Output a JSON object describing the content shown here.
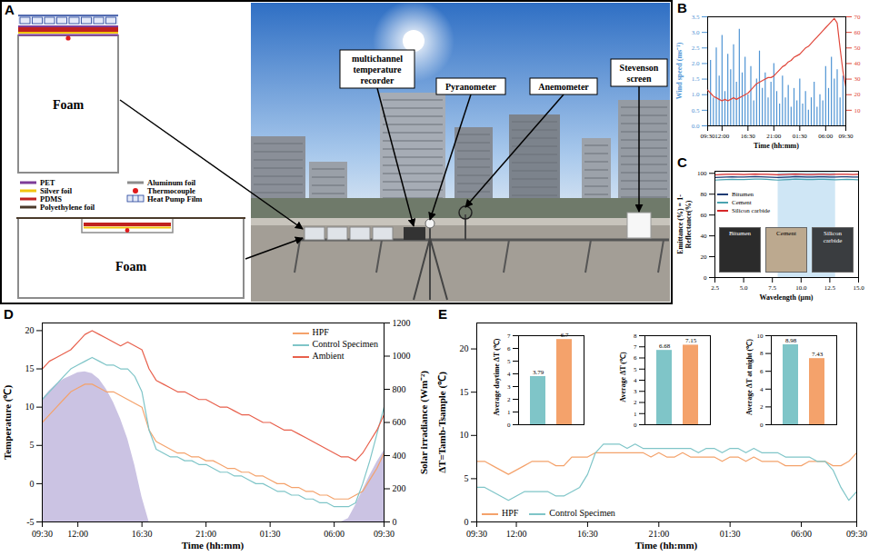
{
  "diagram": {
    "panel": "A",
    "schematic_labels": [
      "Foam",
      "Foam"
    ],
    "materials": [
      {
        "label": "PET",
        "color": "#7d3c98"
      },
      {
        "label": "Aluminum foil",
        "color": "#8c8c8c"
      },
      {
        "label": "Silver foil",
        "color": "#f1c40f"
      },
      {
        "label": "Thermocouple",
        "color": "#e0191c"
      },
      {
        "label": "PDMS",
        "color": "#c0211f"
      },
      {
        "label": "Heat Pump Film",
        "color": "#1f3f99"
      },
      {
        "label": "Polyethylene foil",
        "color": "#4a3a2a"
      }
    ],
    "photo_labels": [
      "multichannel temperature recorder",
      "Pyranometer",
      "Anemometer",
      "Stevenson screen"
    ]
  },
  "chart_data": [
    {
      "panel": "B",
      "type": "line",
      "xlabel": "Time (hh:mm)",
      "ylabel": "Wind speed (ms⁻¹)",
      "x": [
        0,
        0.5,
        1,
        1.5,
        2,
        2.5,
        3,
        3.5,
        4,
        4.5,
        5,
        5.5,
        6,
        6.5,
        7,
        7.5,
        8,
        8.5,
        9,
        9.5,
        10,
        10.5,
        11,
        11.5,
        12,
        12.5,
        13,
        13.5,
        14,
        14.5,
        15,
        15.5,
        16,
        16.5,
        17,
        17.5,
        18,
        18.5,
        19,
        19.5,
        20,
        20.5,
        21,
        21.5,
        22,
        22.5,
        23,
        23.5,
        24
      ],
      "xlim": [
        0,
        24
      ],
      "xticks": [
        {
          "value": 0,
          "label": "09:30"
        },
        {
          "value": 2.5,
          "label": "12:00"
        },
        {
          "value": 7,
          "label": "16:30"
        },
        {
          "value": 11.5,
          "label": "21:00"
        },
        {
          "value": 16,
          "label": "01:30"
        },
        {
          "value": 20.5,
          "label": "06:00"
        },
        {
          "value": 24,
          "label": "09:30"
        }
      ],
      "ylim": [
        0,
        3.5
      ],
      "yticks": [
        {
          "value": 0,
          "label": "0.0"
        },
        0.5,
        {
          "value": 1,
          "label": "1.0"
        },
        1.5,
        {
          "value": 2,
          "label": "2.0"
        },
        2.5,
        {
          "value": 3,
          "label": "3.0"
        },
        3.5
      ],
      "y2lim": [
        0,
        70
      ],
      "y2ticks": [
        10,
        20,
        30,
        40,
        50,
        60,
        70
      ],
      "series": [
        {
          "type": "bar",
          "color": "#4f94d4",
          "values": [
            1.2,
            2.1,
            0.9,
            2.5,
            1.6,
            2.9,
            1.1,
            2.3,
            1.8,
            2.6,
            1.4,
            3.1,
            1.7,
            2.2,
            1.0,
            1.9,
            0.8,
            1.5,
            2.4,
            1.2,
            1.7,
            0.9,
            1.4,
            2.0,
            1.1,
            0.7,
            1.6,
            0.9,
            1.3,
            0.6,
            1.2,
            0.8,
            1.5,
            0.7,
            1.1,
            0.5,
            0.9,
            1.4,
            0.6,
            1.0,
            0.8,
            1.9,
            1.2,
            2.2,
            1.5,
            1.8,
            0.9,
            1.6,
            1.3
          ]
        },
        {
          "type": "line",
          "axis": "y2",
          "color": "#e0463a",
          "values": [
            23,
            21,
            19,
            18,
            17,
            16,
            17,
            16,
            17,
            18,
            17,
            18,
            19,
            20,
            21,
            23,
            25,
            27,
            28,
            29,
            30,
            31,
            31,
            32,
            34,
            36,
            38,
            39,
            41,
            42,
            44,
            45,
            46,
            48,
            50,
            51,
            53,
            55,
            57,
            59,
            61,
            63,
            65,
            67,
            69,
            66,
            50,
            35,
            25
          ]
        }
      ]
    },
    {
      "panel": "C",
      "type": "line",
      "xlabel": "Wavelength (μm)",
      "ylabel": "Emittance (%) = 1-Reflectance(%)",
      "x": [
        2.5,
        3,
        3.5,
        4,
        4.5,
        5,
        5.5,
        6,
        6.5,
        7,
        7.5,
        8,
        8.5,
        9,
        9.5,
        10,
        10.5,
        11,
        11.5,
        12,
        12.5,
        13,
        13.5,
        14,
        14.5,
        15
      ],
      "xlim": [
        2.5,
        15
      ],
      "xticks": [
        2.5,
        {
          "value": 5,
          "label": "5.0"
        },
        7.5,
        {
          "value": 10,
          "label": "10.0"
        },
        12.5,
        {
          "value": 15,
          "label": "15.0"
        }
      ],
      "ylim": [
        0,
        102
      ],
      "yticks": [
        0,
        20,
        40,
        60,
        80,
        100
      ],
      "shaded_range": [
        8,
        13
      ],
      "legend": "center left",
      "photo_labels": [
        "Bitumen",
        "Cement",
        "Silicon carbide"
      ],
      "series": [
        {
          "name": "Bitumen",
          "color": "#1f3b73",
          "values": [
            96,
            96.3,
            96.5,
            96.6,
            96.4,
            96.5,
            96.7,
            96.8,
            96.6,
            96.5,
            96.2,
            96,
            96.3,
            96.5,
            96.8,
            96.6,
            96.4,
            96.5,
            96.7,
            96.6,
            96.5,
            96.4,
            96.6,
            96.7,
            96.5,
            96.4
          ]
        },
        {
          "name": "Cement",
          "color": "#4aa3b0",
          "values": [
            93.5,
            93.8,
            94,
            94.2,
            94.1,
            94,
            94.3,
            94.5,
            94.4,
            94.2,
            93.8,
            93.5,
            93.9,
            94.1,
            94.4,
            94.3,
            94,
            94.1,
            94.3,
            94.2,
            94,
            93.9,
            94.1,
            94.2,
            94,
            93.9
          ]
        },
        {
          "name": "Silicon carbide",
          "color": "#d62728",
          "values": [
            98.5,
            98.8,
            99,
            99.1,
            99,
            98.9,
            99,
            99.2,
            99.1,
            99,
            98.8,
            98.7,
            98.9,
            99,
            99.2,
            99,
            98.8,
            98.9,
            99.1,
            99,
            98.9,
            99,
            99.1,
            99,
            98.9,
            99
          ]
        }
      ]
    },
    {
      "panel": "D",
      "type": "line",
      "xlabel": "Time (hh:mm)",
      "ylabel": "Temperature (℃)",
      "y2label": "Solar irradiance (Wm⁻²)",
      "x": [
        0,
        0.5,
        1,
        1.5,
        2,
        2.5,
        3,
        3.5,
        4,
        4.5,
        5,
        5.5,
        6,
        6.5,
        7,
        7.5,
        8,
        8.5,
        9,
        9.5,
        10,
        10.5,
        11,
        11.5,
        12,
        12.5,
        13,
        13.5,
        14,
        14.5,
        15,
        15.5,
        16,
        16.5,
        17,
        17.5,
        18,
        18.5,
        19,
        19.5,
        20,
        20.5,
        21,
        21.5,
        22,
        22.5,
        23,
        23.5,
        24
      ],
      "xlim": [
        0,
        24
      ],
      "xticks": [
        {
          "value": 0,
          "label": "09:30"
        },
        {
          "value": 2.5,
          "label": "12:00"
        },
        {
          "value": 7,
          "label": "16:30"
        },
        {
          "value": 11.5,
          "label": "21:00"
        },
        {
          "value": 16,
          "label": "01:30"
        },
        {
          "value": 20.5,
          "label": "06:00"
        },
        {
          "value": 24,
          "label": "09:30"
        }
      ],
      "ylim": [
        -5,
        21
      ],
      "yticks": [
        -5,
        0,
        5,
        10,
        15,
        20
      ],
      "y2lim": [
        0,
        1200
      ],
      "y2ticks": [
        0,
        200,
        400,
        600,
        800,
        1000,
        1200
      ],
      "legend": "upper right",
      "series": [
        {
          "type": "area",
          "axis": "y2",
          "color": "#cbc3e3",
          "values": [
            740,
            790,
            830,
            860,
            880,
            900,
            905,
            895,
            860,
            800,
            720,
            620,
            500,
            340,
            150,
            0,
            0,
            0,
            0,
            0,
            0,
            0,
            0,
            0,
            0,
            0,
            0,
            0,
            0,
            0,
            0,
            0,
            0,
            0,
            0,
            0,
            0,
            0,
            0,
            0,
            0,
            0,
            0,
            20,
            100,
            190,
            280,
            360,
            430
          ]
        },
        {
          "name": "HPF",
          "color": "#f4a26b",
          "values": [
            8,
            9,
            10,
            11,
            12,
            12.5,
            13,
            13,
            12.5,
            12,
            12,
            11.5,
            11,
            10.5,
            10,
            7,
            5.5,
            5,
            4.5,
            4,
            4,
            3.5,
            3.5,
            3,
            3,
            2.5,
            2,
            2,
            1.5,
            1.5,
            1,
            1,
            0.5,
            0,
            0,
            -0.5,
            -0.5,
            -1,
            -1,
            -1.5,
            -1.5,
            -2,
            -2,
            -2,
            -1.5,
            -1,
            0.5,
            2,
            4
          ]
        },
        {
          "name": "Control Specimen",
          "color": "#7fc5c8",
          "values": [
            11,
            12,
            13,
            14,
            15,
            15.5,
            16,
            16.5,
            16,
            15.5,
            15.5,
            15,
            15,
            14,
            12,
            7,
            4.5,
            4,
            3.5,
            3.5,
            3,
            3,
            2.5,
            2.5,
            2,
            1.5,
            1.5,
            1,
            1,
            0.5,
            0,
            0,
            -0.5,
            -1,
            -1,
            -1.5,
            -1.5,
            -2,
            -2,
            -2.5,
            -2.5,
            -3,
            -3,
            -3,
            -2.5,
            0,
            3,
            6.5,
            10
          ]
        },
        {
          "name": "Ambient",
          "color": "#e8604c",
          "values": [
            15,
            16,
            16.5,
            17,
            17.5,
            18.5,
            19.5,
            20,
            19.5,
            19,
            18.5,
            18,
            18.5,
            18,
            17.5,
            15,
            13.5,
            13,
            12.5,
            12,
            12,
            11.5,
            11,
            11,
            10.5,
            10,
            10,
            9.5,
            9,
            9,
            8.5,
            8,
            8,
            7.5,
            7,
            7,
            6.5,
            6,
            5.5,
            5,
            4.5,
            4,
            3.5,
            3.5,
            3,
            4,
            5.5,
            7,
            9
          ]
        }
      ]
    },
    {
      "panel": "E",
      "type": "line",
      "xlabel": "Time (hh:mm)",
      "ylabel": "ΔT=Tamb-Tsample (℃)",
      "x": [
        0,
        0.5,
        1,
        1.5,
        2,
        2.5,
        3,
        3.5,
        4,
        4.5,
        5,
        5.5,
        6,
        6.5,
        7,
        7.5,
        8,
        8.5,
        9,
        9.5,
        10,
        10.5,
        11,
        11.5,
        12,
        12.5,
        13,
        13.5,
        14,
        14.5,
        15,
        15.5,
        16,
        16.5,
        17,
        17.5,
        18,
        18.5,
        19,
        19.5,
        20,
        20.5,
        21,
        21.5,
        22,
        22.5,
        23,
        23.5,
        24
      ],
      "xlim": [
        0,
        24
      ],
      "xticks": [
        {
          "value": 0,
          "label": "09:30"
        },
        {
          "value": 2.5,
          "label": "12:00"
        },
        {
          "value": 7,
          "label": "16:30"
        },
        {
          "value": 11.5,
          "label": "21:00"
        },
        {
          "value": 16,
          "label": "01:30"
        },
        {
          "value": 20.5,
          "label": "06:00"
        },
        {
          "value": 24,
          "label": "09:30"
        }
      ],
      "ylim": [
        0,
        23
      ],
      "yticks": [
        0,
        5,
        10,
        15,
        20
      ],
      "legend": "lower left",
      "series": [
        {
          "name": "HPF",
          "color": "#f4a26b",
          "values": [
            7,
            7,
            6.5,
            6,
            5.5,
            6,
            6.5,
            7,
            7,
            7,
            6.5,
            6.5,
            7.5,
            7.5,
            7.5,
            8,
            8,
            8,
            8,
            8,
            8,
            8,
            7.5,
            8,
            7.5,
            7.5,
            8,
            7.5,
            7.5,
            7.5,
            7.5,
            7,
            7.5,
            7.5,
            7,
            7.5,
            7,
            7,
            7,
            6.5,
            6.5,
            6.5,
            7,
            7,
            7,
            6.5,
            6.5,
            7,
            8
          ]
        },
        {
          "name": "Control Specimen",
          "color": "#7fc5c8",
          "values": [
            4,
            4,
            3.5,
            3,
            2.5,
            3,
            3.5,
            3.5,
            3.5,
            3.5,
            3,
            3,
            3.5,
            4,
            5.5,
            8,
            9,
            9,
            9,
            8.5,
            9,
            8.5,
            8.5,
            8.5,
            8.5,
            8.5,
            8.5,
            8.5,
            8,
            8.5,
            8.5,
            8,
            8.5,
            8.5,
            8,
            8.5,
            8,
            8,
            8,
            7.5,
            7.5,
            7.5,
            7.5,
            7,
            7,
            6,
            4,
            2.5,
            3.5
          ]
        }
      ],
      "insets": [
        {
          "type": "bar",
          "ylabel": "Average daytime ΔT (℃)",
          "categories": [
            "Control Specimen",
            "HPF"
          ],
          "values": [
            3.79,
            6.7
          ],
          "colors": [
            "#7fc5c8",
            "#f4a26b"
          ],
          "ylim": [
            0,
            7
          ],
          "yticks": [
            0,
            1,
            2,
            3,
            4,
            5,
            6,
            7
          ],
          "data_labels": true,
          "tick_labels": "y"
        },
        {
          "type": "bar",
          "ylabel": "Average ΔT (℃)",
          "categories": [
            "Control Specimen",
            "HPF"
          ],
          "values": [
            6.68,
            7.15
          ],
          "colors": [
            "#7fc5c8",
            "#f4a26b"
          ],
          "ylim": [
            0,
            8
          ],
          "yticks": [
            0,
            1,
            2,
            3,
            4,
            5,
            6,
            7,
            8
          ],
          "data_labels": true,
          "tick_labels": "y"
        },
        {
          "type": "bar",
          "ylabel": "Average ΔT at night (℃)",
          "categories": [
            "Control Specimen",
            "HPF"
          ],
          "values": [
            8.98,
            7.43
          ],
          "colors": [
            "#7fc5c8",
            "#f4a26b"
          ],
          "ylim": [
            0,
            10
          ],
          "yticks": [
            0,
            2,
            4,
            6,
            8,
            10
          ],
          "data_labels": true,
          "tick_labels": "y"
        }
      ]
    }
  ]
}
